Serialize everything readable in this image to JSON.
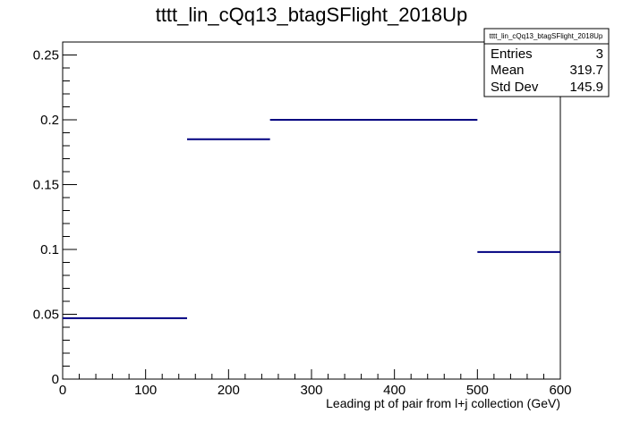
{
  "title": "tttt_lin_cQq13_btagSFlight_2018Up",
  "stats": {
    "name": "tttt_lin_cQq13_btagSFlight_2018Up",
    "rows": [
      {
        "label": "Entries",
        "value": "3"
      },
      {
        "label": "Mean",
        "value": "319.7"
      },
      {
        "label": "Std Dev",
        "value": "145.9"
      }
    ]
  },
  "colors": {
    "line": "#000080",
    "axis": "#000000"
  },
  "chart_data": {
    "type": "bar",
    "title": "tttt_lin_cQq13_btagSFlight_2018Up",
    "xlabel": "Leading pt of pair from l+j collection (GeV)",
    "ylabel": "",
    "xlim": [
      0,
      600
    ],
    "ylim": [
      0,
      0.26
    ],
    "bin_edges": [
      0,
      150,
      250,
      500,
      600
    ],
    "values": [
      0.047,
      0.185,
      0.2,
      0.098
    ],
    "x_ticks": [
      0,
      100,
      200,
      300,
      400,
      500,
      600
    ],
    "x_tick_labels": [
      "0",
      "100",
      "200",
      "300",
      "400",
      "500",
      "600"
    ],
    "y_ticks": [
      0,
      0.05,
      0.1,
      0.15,
      0.2,
      0.25
    ],
    "y_tick_labels": [
      "0",
      "0.05",
      "0.1",
      "0.15",
      "0.2",
      "0.25"
    ],
    "grid": false,
    "legend": "none"
  }
}
